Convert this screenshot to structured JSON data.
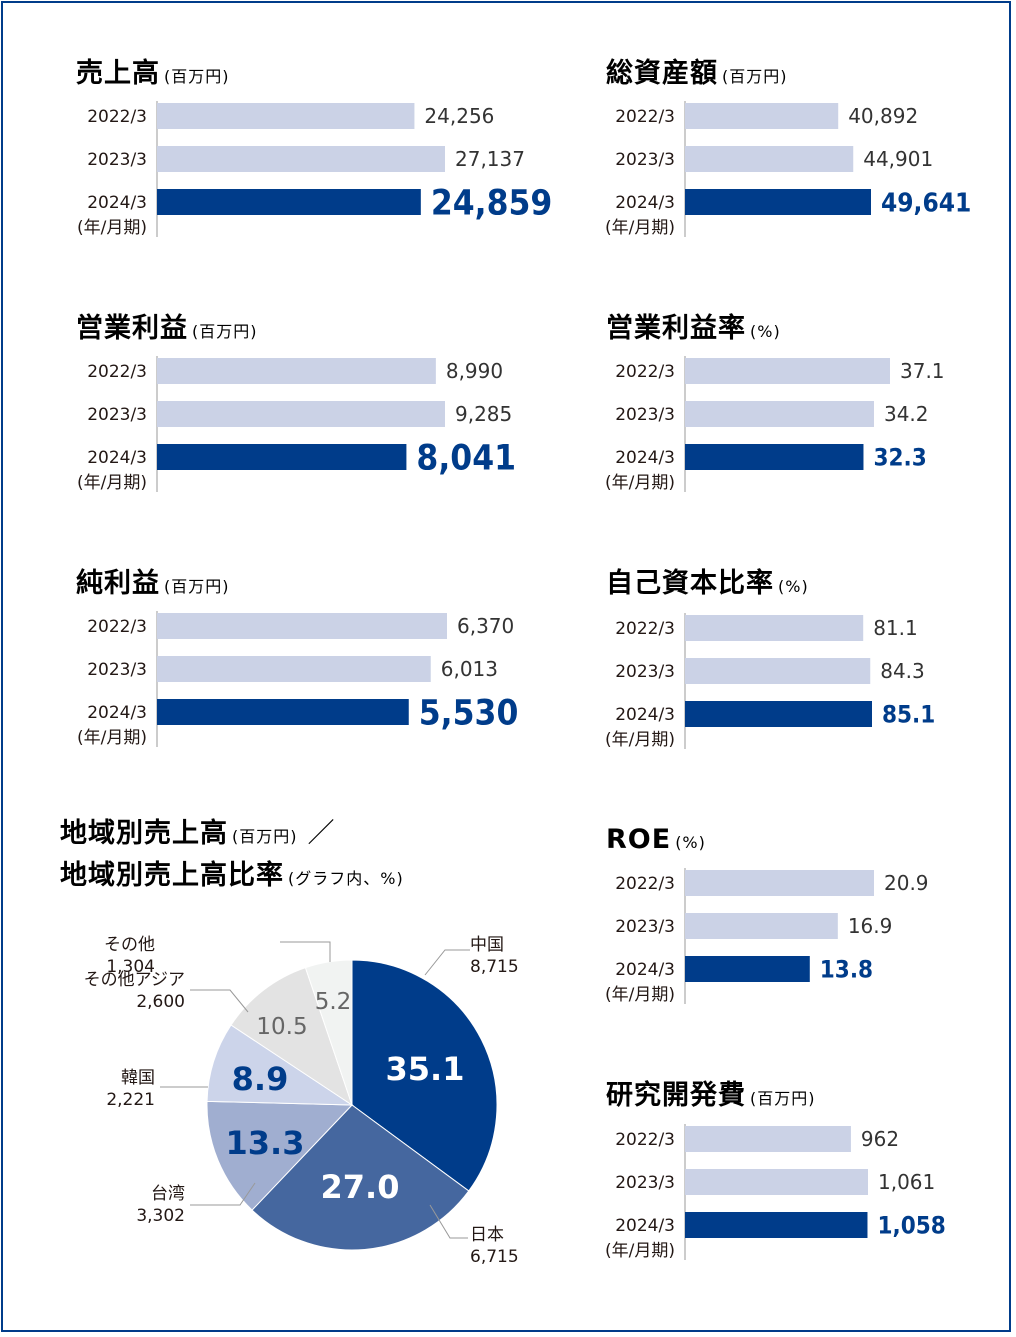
{
  "colors": {
    "prev": "#cbd2e6",
    "current": "#003c8a",
    "frame": "#003c8a"
  },
  "period_note": "(年/月期)",
  "chart_data": [
    {
      "type": "bar",
      "orientation": "horizontal",
      "title": "売上高",
      "unit": "(百万円)",
      "categories": [
        "2022/3",
        "2023/3",
        "2024/3"
      ],
      "values": [
        24256,
        27137,
        24859
      ],
      "value_labels": [
        "24,256",
        "27,137",
        "24,859"
      ],
      "xlim": [
        0,
        27137
      ]
    },
    {
      "type": "bar",
      "orientation": "horizontal",
      "title": "総資産額",
      "unit": "(百万円)",
      "categories": [
        "2022/3",
        "2023/3",
        "2024/3"
      ],
      "values": [
        40892,
        44901,
        49641
      ],
      "value_labels": [
        "40,892",
        "44,901",
        "49,641"
      ],
      "xlim": [
        0,
        49641
      ]
    },
    {
      "type": "bar",
      "orientation": "horizontal",
      "title": "営業利益",
      "unit": "(百万円)",
      "categories": [
        "2022/3",
        "2023/3",
        "2024/3"
      ],
      "values": [
        8990,
        9285,
        8041
      ],
      "value_labels": [
        "8,990",
        "9,285",
        "8,041"
      ],
      "xlim": [
        0,
        9285
      ]
    },
    {
      "type": "bar",
      "orientation": "horizontal",
      "title": "営業利益率",
      "unit": "(%)",
      "categories": [
        "2022/3",
        "2023/3",
        "2024/3"
      ],
      "values": [
        37.1,
        34.2,
        32.3
      ],
      "value_labels": [
        "37.1",
        "34.2",
        "32.3"
      ],
      "xlim": [
        0,
        37.1
      ]
    },
    {
      "type": "bar",
      "orientation": "horizontal",
      "title": "純利益",
      "unit": "(百万円)",
      "categories": [
        "2022/3",
        "2023/3",
        "2024/3"
      ],
      "values": [
        6370,
        6013,
        5530
      ],
      "value_labels": [
        "6,370",
        "6,013",
        "5,530"
      ],
      "xlim": [
        0,
        6370
      ]
    },
    {
      "type": "bar",
      "orientation": "horizontal",
      "title": "自己資本比率",
      "unit": "(%)",
      "categories": [
        "2022/3",
        "2023/3",
        "2024/3"
      ],
      "values": [
        81.1,
        84.3,
        85.1
      ],
      "value_labels": [
        "81.1",
        "84.3",
        "85.1"
      ],
      "xlim": [
        0,
        85.1
      ]
    },
    {
      "type": "bar",
      "orientation": "horizontal",
      "title": "ROE",
      "unit": "(%)",
      "categories": [
        "2022/3",
        "2023/3",
        "2024/3"
      ],
      "values": [
        20.9,
        16.9,
        13.8
      ],
      "value_labels": [
        "20.9",
        "16.9",
        "13.8"
      ],
      "xlim": [
        0,
        20.9
      ]
    },
    {
      "type": "bar",
      "orientation": "horizontal",
      "title": "研究開発費",
      "unit": "(百万円)",
      "categories": [
        "2022/3",
        "2023/3",
        "2024/3"
      ],
      "values": [
        962,
        1061,
        1058
      ],
      "value_labels": [
        "962",
        "1,061",
        "1,058"
      ],
      "xlim": [
        0,
        1061
      ]
    },
    {
      "type": "pie",
      "title_line1": "地域別売上高",
      "unit_line1": "(百万円)",
      "separator": "／",
      "title_line2": "地域別売上高比率",
      "unit_line2": "(グラフ内、%)",
      "slices": [
        {
          "name": "中国",
          "value": 35.1,
          "amount": "8,715",
          "color": "#003c8a",
          "label_color": "#ffffff"
        },
        {
          "name": "日本",
          "value": 27.0,
          "amount": "6,715",
          "color": "#45679f",
          "label_color": "#ffffff"
        },
        {
          "name": "台湾",
          "value": 13.3,
          "amount": "3,302",
          "color": "#a0aed0",
          "label_color": "#003c8a"
        },
        {
          "name": "韓国",
          "value": 8.9,
          "amount": "2,221",
          "color": "#ccd4ea",
          "label_color": "#003c8a"
        },
        {
          "name": "その他アジア",
          "value": 10.5,
          "amount": "2,600",
          "color": "#e3e3e3",
          "label_color": "#666666"
        },
        {
          "name": "その他",
          "value": 5.2,
          "amount": "1,304",
          "color": "#f1f3f2",
          "label_color": "#666666"
        }
      ]
    }
  ]
}
